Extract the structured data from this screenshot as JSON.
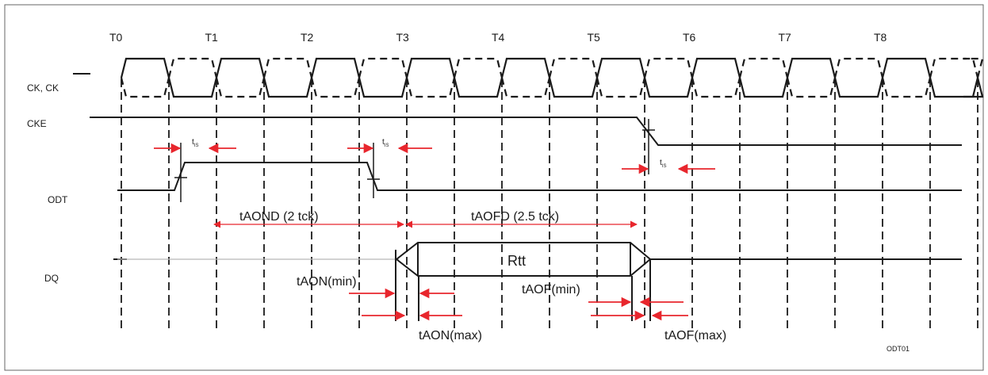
{
  "clock_labels": [
    "T0",
    "T1",
    "T2",
    "T3",
    "T4",
    "T5",
    "T6",
    "T7",
    "T8"
  ],
  "signals": {
    "ck_prefix": "CK, ",
    "ck_bar": "CK",
    "cke": "CKE",
    "odt": "ODT",
    "dq": "DQ"
  },
  "timing": {
    "tis_main": "t",
    "tis_sub": "IS",
    "taond": "tAOND (2 tck)",
    "taofd": "tAOFD (2.5 tck)",
    "rtt": "Rtt",
    "taon_min": "tAON(min)",
    "taon_max": "tAON(max)",
    "taof_min": "tAOF(min)",
    "taof_max": "tAOF(max)"
  },
  "figure_id": "ODT01",
  "colors": {
    "signal": "#1a1a1a",
    "arrow": "#e8262d",
    "guide": "#1a1a1a",
    "frame": "#666666"
  }
}
